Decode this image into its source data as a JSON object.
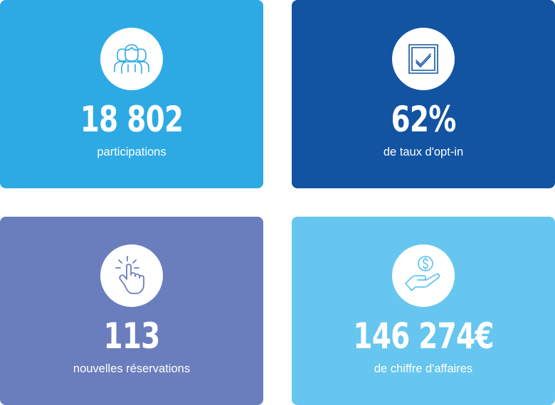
{
  "colors": {
    "card_1_bg": "#2daae4",
    "card_2_bg": "#1253a2",
    "card_3_bg": "#6a7ebe",
    "card_4_bg": "#66c6ef",
    "icon_bg": "#ffffff",
    "text": "#ffffff"
  },
  "stats": [
    {
      "icon": "people-group-icon",
      "value": "18 802",
      "label": "participations"
    },
    {
      "icon": "checked-box-icon",
      "value": "62%",
      "label": "de taux d'opt-in"
    },
    {
      "icon": "tap-hand-icon",
      "value": "113",
      "label": "nouvelles réservations"
    },
    {
      "icon": "hand-dollar-coin-icon",
      "value": "146 274€",
      "label": "de chiffre d'affaires"
    }
  ]
}
